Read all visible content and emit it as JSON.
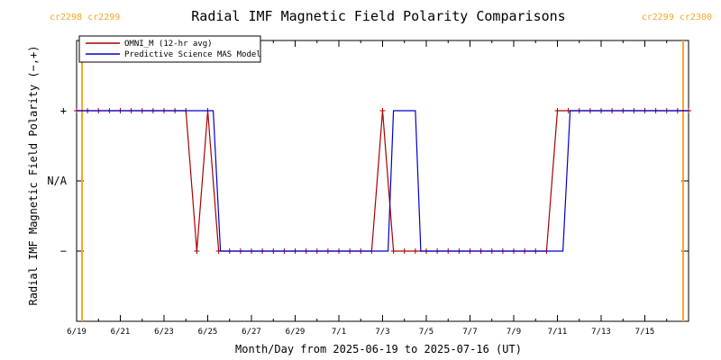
{
  "chart_data": {
    "type": "line",
    "title": "Radial IMF Magnetic Field Polarity Comparisons",
    "xlabel": "Month/Day from 2025-06-19 to 2025-07-16 (UT)",
    "ylabel": "Radial IMF Magnetic Field Polarity (−,+)",
    "x_range": [
      "2025-06-19",
      "2025-07-17"
    ],
    "y_range": [
      -2,
      2
    ],
    "y_ticks": [
      {
        "value": 1,
        "label": "+"
      },
      {
        "value": 0,
        "label": "N/A"
      },
      {
        "value": -1,
        "label": "−"
      }
    ],
    "x_ticks": [
      {
        "value": "2025-06-19",
        "label": "6/19"
      },
      {
        "value": "2025-06-21",
        "label": "6/21"
      },
      {
        "value": "2025-06-23",
        "label": "6/23"
      },
      {
        "value": "2025-06-25",
        "label": "6/25"
      },
      {
        "value": "2025-06-27",
        "label": "6/27"
      },
      {
        "value": "2025-06-29",
        "label": "6/29"
      },
      {
        "value": "2025-07-01",
        "label": "7/1"
      },
      {
        "value": "2025-07-03",
        "label": "7/3"
      },
      {
        "value": "2025-07-05",
        "label": "7/5"
      },
      {
        "value": "2025-07-07",
        "label": "7/7"
      },
      {
        "value": "2025-07-09",
        "label": "7/9"
      },
      {
        "value": "2025-07-11",
        "label": "7/11"
      },
      {
        "value": "2025-07-13",
        "label": "7/13"
      },
      {
        "value": "2025-07-15",
        "label": "7/15"
      }
    ],
    "carrington_markers": [
      {
        "x": "2025-06-19T06:00",
        "label": "cr2298 cr2299",
        "anchor": "left"
      },
      {
        "x": "2025-07-16T18:00",
        "label": "cr2299 cr2300",
        "anchor": "right"
      }
    ],
    "grid": false,
    "legend_position": "top-left",
    "series": [
      {
        "name": "OMNI_M (12-hr avg)",
        "color": "#aa0000",
        "markers": true,
        "points": [
          [
            "2025-06-19T00:00",
            1
          ],
          [
            "2025-06-19T12:00",
            1
          ],
          [
            "2025-06-20T00:00",
            1
          ],
          [
            "2025-06-20T12:00",
            1
          ],
          [
            "2025-06-21T00:00",
            1
          ],
          [
            "2025-06-21T12:00",
            1
          ],
          [
            "2025-06-22T00:00",
            1
          ],
          [
            "2025-06-22T12:00",
            1
          ],
          [
            "2025-06-23T00:00",
            1
          ],
          [
            "2025-06-23T12:00",
            1
          ],
          [
            "2025-06-24T00:00",
            1
          ],
          [
            "2025-06-24T12:00",
            -1
          ],
          [
            "2025-06-25T00:00",
            1
          ],
          [
            "2025-06-25T12:00",
            -1
          ],
          [
            "2025-06-26T00:00",
            -1
          ],
          [
            "2025-06-26T12:00",
            -1
          ],
          [
            "2025-06-27T00:00",
            -1
          ],
          [
            "2025-06-27T12:00",
            -1
          ],
          [
            "2025-06-28T00:00",
            -1
          ],
          [
            "2025-06-28T12:00",
            -1
          ],
          [
            "2025-06-29T00:00",
            -1
          ],
          [
            "2025-06-29T12:00",
            -1
          ],
          [
            "2025-06-30T00:00",
            -1
          ],
          [
            "2025-06-30T12:00",
            -1
          ],
          [
            "2025-07-01T00:00",
            -1
          ],
          [
            "2025-07-01T12:00",
            -1
          ],
          [
            "2025-07-02T00:00",
            -1
          ],
          [
            "2025-07-02T12:00",
            -1
          ],
          [
            "2025-07-03T00:00",
            1
          ],
          [
            "2025-07-03T12:00",
            -1
          ],
          [
            "2025-07-04T00:00",
            -1
          ],
          [
            "2025-07-04T12:00",
            -1
          ],
          [
            "2025-07-05T00:00",
            -1
          ],
          [
            "2025-07-05T12:00",
            -1
          ],
          [
            "2025-07-06T00:00",
            -1
          ],
          [
            "2025-07-06T12:00",
            -1
          ],
          [
            "2025-07-07T00:00",
            -1
          ],
          [
            "2025-07-07T12:00",
            -1
          ],
          [
            "2025-07-08T00:00",
            -1
          ],
          [
            "2025-07-08T12:00",
            -1
          ],
          [
            "2025-07-09T00:00",
            -1
          ],
          [
            "2025-07-09T12:00",
            -1
          ],
          [
            "2025-07-10T00:00",
            -1
          ],
          [
            "2025-07-10T12:00",
            -1
          ],
          [
            "2025-07-11T00:00",
            1
          ],
          [
            "2025-07-11T12:00",
            1
          ],
          [
            "2025-07-12T00:00",
            1
          ],
          [
            "2025-07-12T12:00",
            1
          ],
          [
            "2025-07-13T00:00",
            1
          ],
          [
            "2025-07-13T12:00",
            1
          ],
          [
            "2025-07-14T00:00",
            1
          ],
          [
            "2025-07-14T12:00",
            1
          ],
          [
            "2025-07-15T00:00",
            1
          ],
          [
            "2025-07-15T12:00",
            1
          ],
          [
            "2025-07-16T00:00",
            1
          ],
          [
            "2025-07-16T12:00",
            1
          ],
          [
            "2025-07-17T00:00",
            1
          ]
        ]
      },
      {
        "name": "Predictive Science MAS Model",
        "color": "#0000cc",
        "markers": false,
        "points": [
          [
            "2025-06-19T00:00",
            1
          ],
          [
            "2025-06-25T06:00",
            1
          ],
          [
            "2025-06-25T14:00",
            -1
          ],
          [
            "2025-07-03T06:00",
            -1
          ],
          [
            "2025-07-03T12:00",
            1
          ],
          [
            "2025-07-04T12:00",
            1
          ],
          [
            "2025-07-04T18:00",
            -1
          ],
          [
            "2025-07-11T06:00",
            -1
          ],
          [
            "2025-07-11T14:00",
            1
          ],
          [
            "2025-07-17T00:00",
            1
          ]
        ]
      }
    ]
  }
}
